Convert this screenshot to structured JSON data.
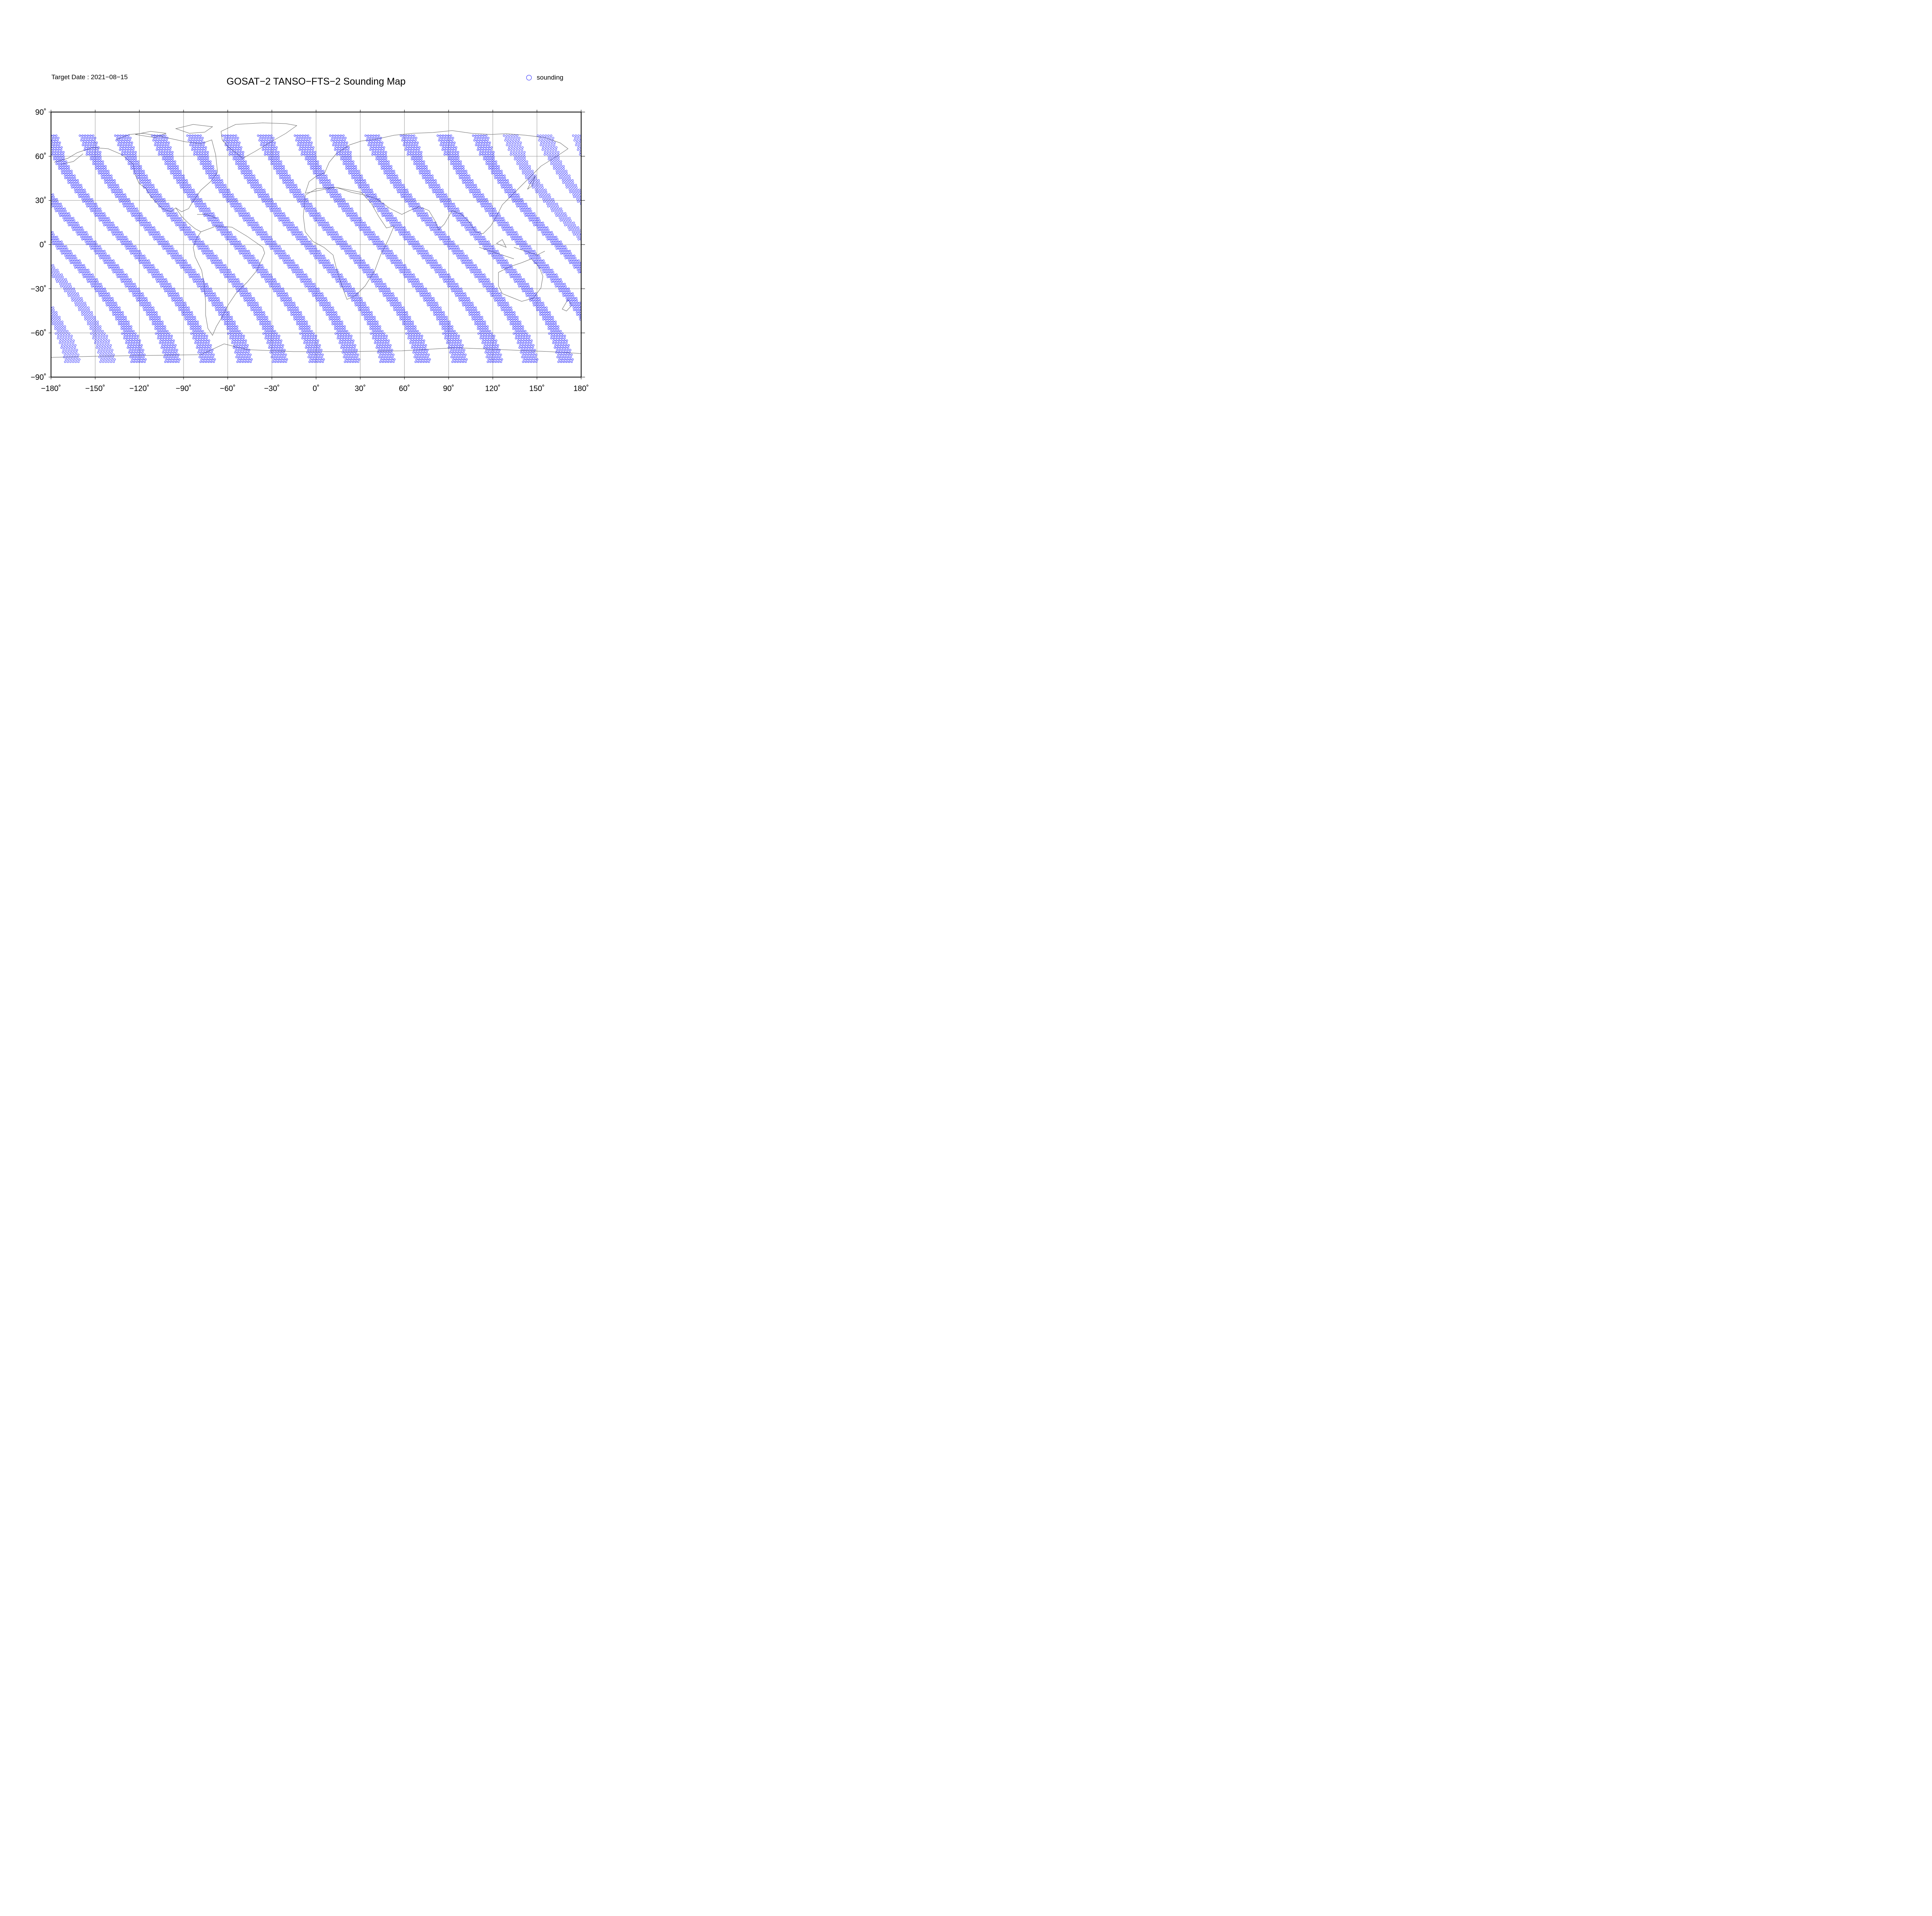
{
  "header": {
    "target_date": "Target Date : 2021−08−15",
    "title": "GOSAT−2 TANSO−FTS−2 Sounding Map"
  },
  "legend": {
    "label": "sounding",
    "marker": "open-circle",
    "color": "#1e1eff"
  },
  "map": {
    "projection": "equirectangular",
    "lon_range": [
      -180,
      180
    ],
    "lat_range": [
      -90,
      90
    ],
    "grid": true,
    "coastline_color": "#666666",
    "grid_color": "#9a9a9a",
    "sounding_color": "#1e1eff",
    "x_tick_labels": [
      "−180˚",
      "−150˚",
      "−120˚",
      "−90˚",
      "−60˚",
      "−30˚",
      "0˚",
      "30˚",
      "60˚",
      "90˚",
      "120˚",
      "150˚",
      "180˚"
    ],
    "x_tick_values": [
      -180,
      -150,
      -120,
      -90,
      -60,
      -30,
      0,
      30,
      60,
      90,
      120,
      150,
      180
    ],
    "y_tick_labels": [
      "90˚",
      "60˚",
      "30˚",
      "0˚",
      "−30˚",
      "−60˚",
      "−90˚"
    ],
    "y_tick_values": [
      90,
      60,
      30,
      0,
      -30,
      -60,
      -90
    ],
    "orbit_tracks": {
      "count": 15,
      "descending": true,
      "northern_start_lat": 74,
      "southern_turn_lat": -80,
      "equator_crossing_lons": [
        -175,
        -152,
        -128,
        -103,
        -79,
        -54,
        -30,
        -6,
        18,
        43,
        67,
        91,
        115,
        140,
        164
      ],
      "longitude_shift_across_track": 55
    }
  }
}
